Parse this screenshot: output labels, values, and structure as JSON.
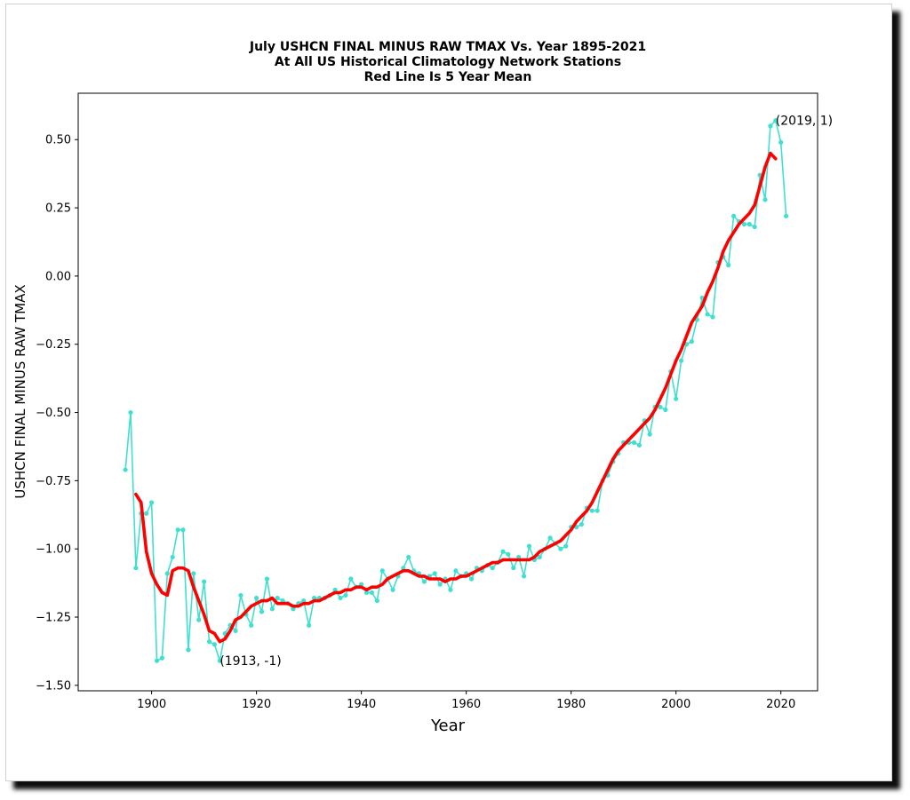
{
  "chart_data": {
    "type": "line",
    "title_lines": [
      "July USHCN FINAL MINUS RAW TMAX Vs. Year 1895-2021",
      "At All US Historical Climatology Network Stations",
      "Red Line Is 5 Year Mean"
    ],
    "xlabel": "Year",
    "ylabel": "USHCN FINAL MINUS RAW TMAX",
    "xlim": [
      1886,
      2027
    ],
    "ylim": [
      -1.52,
      0.67
    ],
    "x_ticks": [
      1900,
      1920,
      1940,
      1960,
      1980,
      2000,
      2020
    ],
    "x_tick_labels": [
      "1900",
      "1920",
      "1940",
      "1960",
      "1980",
      "2000",
      "2020"
    ],
    "y_ticks": [
      0.5,
      0.25,
      0.0,
      -0.25,
      -0.5,
      -0.75,
      -1.0,
      -1.25,
      -1.5
    ],
    "y_tick_labels": [
      "0.50",
      "0.25",
      "0.00",
      "−0.25",
      "−0.50",
      "−0.75",
      "−1.00",
      "−1.25",
      "−1.50"
    ],
    "grid": false,
    "colors": {
      "raw": "#40e0d0",
      "mean": "#ff0000"
    },
    "series": [
      {
        "role": "annual",
        "x": [
          1895,
          1896,
          1897,
          1898,
          1899,
          1900,
          1901,
          1902,
          1903,
          1904,
          1905,
          1906,
          1907,
          1908,
          1909,
          1910,
          1911,
          1912,
          1913,
          1914,
          1915,
          1916,
          1917,
          1918,
          1919,
          1920,
          1921,
          1922,
          1923,
          1924,
          1925,
          1926,
          1927,
          1928,
          1929,
          1930,
          1931,
          1932,
          1933,
          1934,
          1935,
          1936,
          1937,
          1938,
          1939,
          1940,
          1941,
          1942,
          1943,
          1944,
          1945,
          1946,
          1947,
          1948,
          1949,
          1950,
          1951,
          1952,
          1953,
          1954,
          1955,
          1956,
          1957,
          1958,
          1959,
          1960,
          1961,
          1962,
          1963,
          1964,
          1965,
          1966,
          1967,
          1968,
          1969,
          1970,
          1971,
          1972,
          1973,
          1974,
          1975,
          1976,
          1977,
          1978,
          1979,
          1980,
          1981,
          1982,
          1983,
          1984,
          1985,
          1986,
          1987,
          1988,
          1989,
          1990,
          1991,
          1992,
          1993,
          1994,
          1995,
          1996,
          1997,
          1998,
          1999,
          2000,
          2001,
          2002,
          2003,
          2004,
          2005,
          2006,
          2007,
          2008,
          2009,
          2010,
          2011,
          2012,
          2013,
          2014,
          2015,
          2016,
          2017,
          2018,
          2019,
          2020,
          2021
        ],
        "values": [
          -0.71,
          -0.5,
          -1.07,
          -0.87,
          -0.87,
          -0.83,
          -1.41,
          -1.4,
          -1.09,
          -1.03,
          -0.93,
          -0.93,
          -1.37,
          -1.09,
          -1.26,
          -1.12,
          -1.34,
          -1.35,
          -1.41,
          -1.31,
          -1.28,
          -1.3,
          -1.17,
          -1.24,
          -1.28,
          -1.18,
          -1.23,
          -1.11,
          -1.22,
          -1.18,
          -1.19,
          -1.2,
          -1.22,
          -1.2,
          -1.19,
          -1.28,
          -1.18,
          -1.18,
          -1.18,
          -1.17,
          -1.15,
          -1.18,
          -1.17,
          -1.11,
          -1.14,
          -1.13,
          -1.16,
          -1.16,
          -1.19,
          -1.08,
          -1.11,
          -1.15,
          -1.1,
          -1.07,
          -1.03,
          -1.08,
          -1.09,
          -1.12,
          -1.1,
          -1.09,
          -1.13,
          -1.11,
          -1.15,
          -1.08,
          -1.1,
          -1.09,
          -1.11,
          -1.07,
          -1.08,
          -1.06,
          -1.07,
          -1.05,
          -1.01,
          -1.02,
          -1.07,
          -1.03,
          -1.1,
          -0.99,
          -1.04,
          -1.03,
          -1.0,
          -0.96,
          -0.98,
          -1.0,
          -0.99,
          -0.92,
          -0.92,
          -0.91,
          -0.85,
          -0.86,
          -0.86,
          -0.75,
          -0.73,
          -0.68,
          -0.65,
          -0.61,
          -0.61,
          -0.61,
          -0.62,
          -0.53,
          -0.58,
          -0.48,
          -0.48,
          -0.49,
          -0.35,
          -0.45,
          -0.31,
          -0.25,
          -0.24,
          -0.16,
          -0.08,
          -0.14,
          -0.15,
          0.05,
          0.07,
          0.04,
          0.22,
          0.2,
          0.19,
          0.19,
          0.18,
          0.37,
          0.28,
          0.55,
          0.57,
          0.49,
          0.22
        ]
      },
      {
        "role": "5-year mean",
        "x": [
          1897,
          1898,
          1899,
          1900,
          1901,
          1902,
          1903,
          1904,
          1905,
          1906,
          1907,
          1908,
          1909,
          1910,
          1911,
          1912,
          1913,
          1914,
          1915,
          1916,
          1917,
          1918,
          1919,
          1920,
          1921,
          1922,
          1923,
          1924,
          1925,
          1926,
          1927,
          1928,
          1929,
          1930,
          1931,
          1932,
          1933,
          1934,
          1935,
          1936,
          1937,
          1938,
          1939,
          1940,
          1941,
          1942,
          1943,
          1944,
          1945,
          1946,
          1947,
          1948,
          1949,
          1950,
          1951,
          1952,
          1953,
          1954,
          1955,
          1956,
          1957,
          1958,
          1959,
          1960,
          1961,
          1962,
          1963,
          1964,
          1965,
          1966,
          1967,
          1968,
          1969,
          1970,
          1971,
          1972,
          1973,
          1974,
          1975,
          1976,
          1977,
          1978,
          1979,
          1980,
          1981,
          1982,
          1983,
          1984,
          1985,
          1986,
          1987,
          1988,
          1989,
          1990,
          1991,
          1992,
          1993,
          1994,
          1995,
          1996,
          1997,
          1998,
          1999,
          2000,
          2001,
          2002,
          2003,
          2004,
          2005,
          2006,
          2007,
          2008,
          2009,
          2010,
          2011,
          2012,
          2013,
          2014,
          2015,
          2016,
          2017,
          2018,
          2019
        ],
        "values": [
          -0.8,
          -0.83,
          -1.01,
          -1.09,
          -1.13,
          -1.16,
          -1.17,
          -1.08,
          -1.07,
          -1.07,
          -1.08,
          -1.14,
          -1.19,
          -1.24,
          -1.3,
          -1.31,
          -1.34,
          -1.33,
          -1.3,
          -1.26,
          -1.25,
          -1.23,
          -1.21,
          -1.2,
          -1.19,
          -1.19,
          -1.18,
          -1.2,
          -1.2,
          -1.2,
          -1.21,
          -1.21,
          -1.2,
          -1.2,
          -1.19,
          -1.19,
          -1.18,
          -1.17,
          -1.16,
          -1.16,
          -1.15,
          -1.15,
          -1.14,
          -1.14,
          -1.15,
          -1.14,
          -1.14,
          -1.13,
          -1.11,
          -1.1,
          -1.09,
          -1.08,
          -1.08,
          -1.09,
          -1.1,
          -1.1,
          -1.11,
          -1.11,
          -1.11,
          -1.12,
          -1.11,
          -1.11,
          -1.1,
          -1.1,
          -1.09,
          -1.08,
          -1.07,
          -1.06,
          -1.05,
          -1.05,
          -1.04,
          -1.04,
          -1.04,
          -1.04,
          -1.04,
          -1.04,
          -1.03,
          -1.01,
          -1.0,
          -0.99,
          -0.98,
          -0.97,
          -0.95,
          -0.93,
          -0.9,
          -0.88,
          -0.86,
          -0.83,
          -0.79,
          -0.75,
          -0.71,
          -0.67,
          -0.64,
          -0.62,
          -0.6,
          -0.58,
          -0.56,
          -0.54,
          -0.52,
          -0.49,
          -0.45,
          -0.41,
          -0.36,
          -0.31,
          -0.27,
          -0.22,
          -0.17,
          -0.14,
          -0.11,
          -0.06,
          -0.02,
          0.03,
          0.09,
          0.13,
          0.16,
          0.19,
          0.21,
          0.23,
          0.26,
          0.33,
          0.4,
          0.45,
          0.43
        ]
      }
    ],
    "annotations": [
      {
        "x": 1913,
        "y": -1.41,
        "label": "(1913, -1)"
      },
      {
        "x": 2019,
        "y": 0.57,
        "label": "(2019, 1)"
      }
    ]
  }
}
